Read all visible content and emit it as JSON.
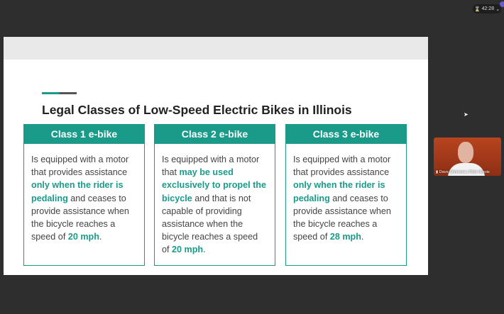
{
  "meeting": {
    "timer": "42:28",
    "timer_icon": "hourglass-icon",
    "participant": "Dave Simmons | Ride Illinois"
  },
  "slide": {
    "title": "Legal Classes of Low-Speed Electric Bikes in Illinois",
    "accent_color": "#1a9b8a",
    "cards": [
      {
        "header": "Class 1 e-bike",
        "parts": [
          "Is equipped with a motor that provides assistance ",
          "only when the rider is pedaling",
          " and ceases to provide assistance when the bicycle reaches a speed of ",
          "20 mph",
          "."
        ]
      },
      {
        "header": "Class 2 e-bike",
        "parts": [
          "Is equipped with a motor that ",
          "may be used exclusively to propel the bicycle",
          " and that is not capable of providing assistance when the bicycle reaches a speed of ",
          "20 mph",
          "."
        ]
      },
      {
        "header": "Class 3 e-bike",
        "parts": [
          "Is equipped with a motor that provides assistance ",
          "only when the rider is pedaling",
          " and ceases to provide assistance when the bicycle reaches a speed of ",
          "28 mph",
          "."
        ]
      }
    ]
  }
}
